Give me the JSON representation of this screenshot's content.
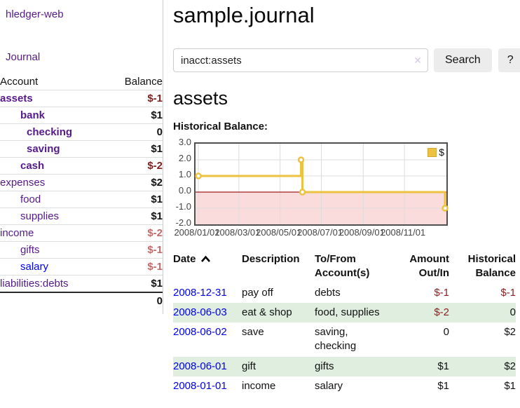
{
  "sidebar": {
    "brand": "hledger-web",
    "journal_label": "Journal",
    "accounts_table": {
      "col_account": "Account",
      "col_balance": "Balance",
      "rows": [
        {
          "name": "assets",
          "indent_class": "lvl0",
          "name_class": "bold",
          "balance": "$-1",
          "balance_class": "neg-strong"
        },
        {
          "name": "bank",
          "indent_class": "lvl1",
          "name_class": "bold",
          "balance": "$1",
          "balance_class": ""
        },
        {
          "name": "checking",
          "indent_class": "lvl2",
          "name_class": "bold",
          "balance": "0",
          "balance_class": ""
        },
        {
          "name": "saving",
          "indent_class": "lvl2",
          "name_class": "bold",
          "balance": "$1",
          "balance_class": ""
        },
        {
          "name": "cash",
          "indent_class": "lvl1",
          "name_class": "bold",
          "balance": "$-2",
          "balance_class": "neg-strong"
        },
        {
          "name": "expenses",
          "indent_class": "lvl0",
          "name_class": "",
          "balance": "$2",
          "balance_class": ""
        },
        {
          "name": "food",
          "indent_class": "lvl1",
          "name_class": "",
          "balance": "$1",
          "balance_class": ""
        },
        {
          "name": "supplies",
          "indent_class": "lvl1",
          "name_class": "",
          "balance": "$1",
          "balance_class": ""
        },
        {
          "name": "income",
          "indent_class": "lvl0",
          "name_class": "",
          "balance": "$-2",
          "balance_class": "neg-soft"
        },
        {
          "name": "gifts",
          "indent_class": "lvl1",
          "name_class": "",
          "balance": "$-1",
          "balance_class": "neg-soft"
        },
        {
          "name": "salary",
          "indent_class": "lvl1",
          "name_class": "blue",
          "balance": "$-1",
          "balance_class": "neg-soft"
        },
        {
          "name": "liabilities:debts",
          "indent_class": "lvl0",
          "name_class": "",
          "balance": "$1",
          "balance_class": ""
        }
      ],
      "total": "0"
    }
  },
  "header": {
    "title": "sample.journal"
  },
  "search": {
    "value": "inacct:assets",
    "clear_icon": "✕",
    "button": "Search",
    "help_button": "?"
  },
  "account_page": {
    "heading": "assets",
    "chart_label": "Historical Balance:"
  },
  "chart_data": {
    "type": "line",
    "title": "Historical Balance:",
    "account": "assets",
    "step": true,
    "grid": true,
    "xrange": [
      "2008/01/01",
      "2008/12/31"
    ],
    "ylim": [
      -2,
      3
    ],
    "yticks": [
      {
        "label": "3.0",
        "value": 3
      },
      {
        "label": "2.0",
        "value": 2
      },
      {
        "label": "1.0",
        "value": 1
      },
      {
        "label": "0.0",
        "value": 0
      },
      {
        "label": "-1.0",
        "value": -1
      },
      {
        "label": "-2.0",
        "value": -2
      }
    ],
    "xticks": [
      "2008/01/01",
      "2008/03/01",
      "2008/05/01",
      "2008/07/01",
      "2008/09/01",
      "2008/11/01"
    ],
    "series": [
      {
        "name": "$",
        "color": "#edc240",
        "points": [
          [
            "2008/01/01",
            1
          ],
          [
            "2008/06/01",
            2
          ],
          [
            "2008/06/03",
            0
          ],
          [
            "2008/12/31",
            -1
          ]
        ]
      }
    ],
    "legend": {
      "label": "$",
      "swatch_color": "#edc240",
      "position": "top-right"
    },
    "negative_region_color": "#fbdcdc",
    "zero_line_color": "#9c1c1c"
  },
  "register": {
    "columns": [
      "Date",
      "Description",
      "To/From\nAccount(s)",
      "Amount\nOut/In",
      "Historical\nBalance"
    ],
    "rows": [
      {
        "date": "2008-12-31",
        "description": "pay off",
        "to_from": "debts",
        "amount": "$-1",
        "amount_class": "neg",
        "balance": "$-1",
        "balance_class": "neg"
      },
      {
        "date": "2008-06-03",
        "description": "eat & shop",
        "to_from": "food, supplies",
        "amount": "$-2",
        "amount_class": "neg",
        "balance": "0",
        "balance_class": ""
      },
      {
        "date": "2008-06-02",
        "description": "save",
        "to_from": "saving,\nchecking",
        "amount": "0",
        "amount_class": "",
        "balance": "$2",
        "balance_class": ""
      },
      {
        "date": "2008-06-01",
        "description": "gift",
        "to_from": "gifts",
        "amount": "$1",
        "amount_class": "",
        "balance": "$2",
        "balance_class": ""
      },
      {
        "date": "2008-01-01",
        "description": "income",
        "to_from": "salary",
        "amount": "$1",
        "amount_class": "",
        "balance": "$1",
        "balance_class": ""
      }
    ]
  },
  "colors": {
    "link_purple": "#551a8b",
    "link_blue": "#0000ee",
    "negative_strong": "#7f1f1f",
    "negative_soft": "#c4696b",
    "negative_table": "#8b1e1e",
    "row_green": "#dfeede",
    "series_gold": "#edc240",
    "negative_region_pink": "#fbdcdc",
    "zero_line_red": "#9c1c1c"
  }
}
